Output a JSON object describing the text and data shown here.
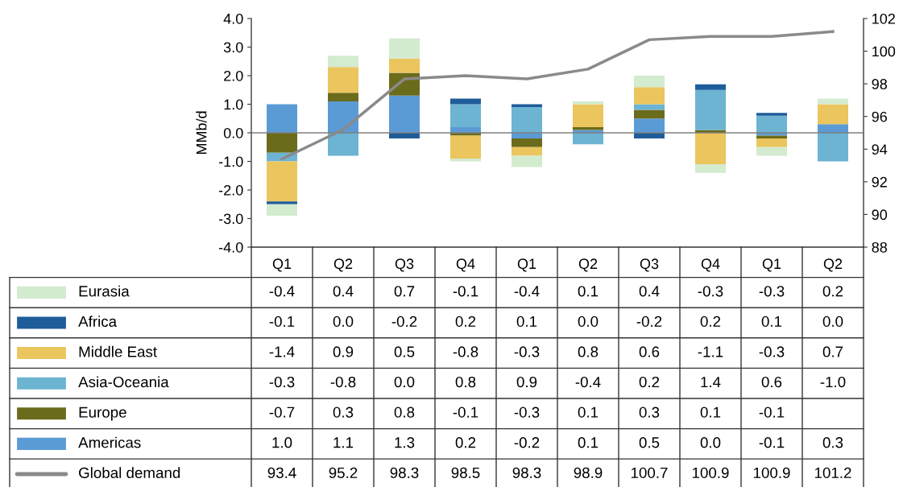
{
  "chart_data": {
    "type": "bar",
    "stacked": true,
    "ylabel": "MMb/d",
    "categories": [
      "Q1",
      "Q2",
      "Q3",
      "Q4",
      "Q1",
      "Q2",
      "Q3",
      "Q4",
      "Q1",
      "Q2"
    ],
    "series": [
      {
        "name": "Americas",
        "color": "#5b9bd5",
        "values": [
          1.0,
          1.1,
          1.3,
          0.2,
          -0.2,
          0.1,
          0.5,
          0.0,
          -0.1,
          0.3
        ],
        "value_labels": [
          "1.0",
          "1.1",
          "1.3",
          "0.2",
          "-0.2",
          "0.1",
          "0.5",
          "0.0",
          "-0.1",
          "0.3"
        ]
      },
      {
        "name": "Europe",
        "color": "#6b6b1c",
        "values": [
          -0.7,
          0.3,
          0.8,
          -0.1,
          -0.3,
          0.1,
          0.3,
          0.1,
          -0.1,
          null
        ],
        "value_labels": [
          "-0.7",
          "0.3",
          "0.8",
          "-0.1",
          "-0.3",
          "0.1",
          "0.3",
          "0.1",
          "-0.1",
          null
        ]
      },
      {
        "name": "Asia-Oceania",
        "color": "#6cb4d2",
        "values": [
          -0.3,
          -0.8,
          0.0,
          0.8,
          0.9,
          -0.4,
          0.2,
          1.4,
          0.6,
          -1.0
        ],
        "value_labels": [
          "-0.3",
          "-0.8",
          "0.0",
          "0.8",
          "0.9",
          "-0.4",
          "0.2",
          "1.4",
          "0.6",
          "-1.0"
        ]
      },
      {
        "name": "Middle East",
        "color": "#ebc55e",
        "values": [
          -1.4,
          0.9,
          0.5,
          -0.8,
          -0.3,
          0.8,
          0.6,
          -1.1,
          -0.3,
          0.7
        ],
        "value_labels": [
          "-1.4",
          "0.9",
          "0.5",
          "-0.8",
          "-0.3",
          "0.8",
          "0.6",
          "-1.1",
          "-0.3",
          "0.7"
        ]
      },
      {
        "name": "Africa",
        "color": "#1f5c9a",
        "values": [
          -0.1,
          0.0,
          -0.2,
          0.2,
          0.1,
          0.0,
          -0.2,
          0.2,
          0.1,
          0.0
        ],
        "value_labels": [
          "-0.1",
          "0.0",
          "-0.2",
          "0.2",
          "0.1",
          "0.0",
          "-0.2",
          "0.2",
          "0.1",
          "0.0"
        ]
      },
      {
        "name": "Eurasia",
        "color": "#d3ebcf",
        "values": [
          -0.4,
          0.4,
          0.7,
          -0.1,
          -0.4,
          0.1,
          0.4,
          -0.3,
          -0.3,
          0.2
        ],
        "value_labels": [
          "-0.4",
          "0.4",
          "0.7",
          "-0.1",
          "-0.4",
          "0.1",
          "0.4",
          "-0.3",
          "-0.3",
          "0.2"
        ]
      },
      {
        "name": "Global demand",
        "type": "line",
        "axis": "y2",
        "color": "#8a8a8a",
        "values": [
          93.4,
          95.2,
          98.3,
          98.5,
          98.3,
          98.9,
          100.7,
          100.9,
          100.9,
          101.2
        ],
        "value_labels": [
          "93.4",
          "95.2",
          "98.3",
          "98.5",
          "98.3",
          "98.9",
          "100.7",
          "100.9",
          "100.9",
          "101.2"
        ]
      }
    ],
    "ylim": [
      -4,
      4
    ],
    "yticks": [
      {
        "value": -4,
        "label": "-4.0"
      },
      {
        "value": -3,
        "label": "-3.0"
      },
      {
        "value": -2,
        "label": "-2.0"
      },
      {
        "value": -1,
        "label": "-1.0"
      },
      {
        "value": 0,
        "label": "0.0"
      },
      {
        "value": 1,
        "label": "1.0"
      },
      {
        "value": 2,
        "label": "2.0"
      },
      {
        "value": 3,
        "label": "3.0"
      },
      {
        "value": 4,
        "label": "4.0"
      }
    ],
    "y2lim": [
      88,
      102
    ],
    "y2ticks": [
      88,
      90,
      92,
      94,
      96,
      98,
      100,
      102
    ],
    "ref_lines": [
      {
        "axis": "y",
        "value": 0,
        "color": "#7f7f7f"
      }
    ],
    "legend": "bottom",
    "grid": false
  }
}
